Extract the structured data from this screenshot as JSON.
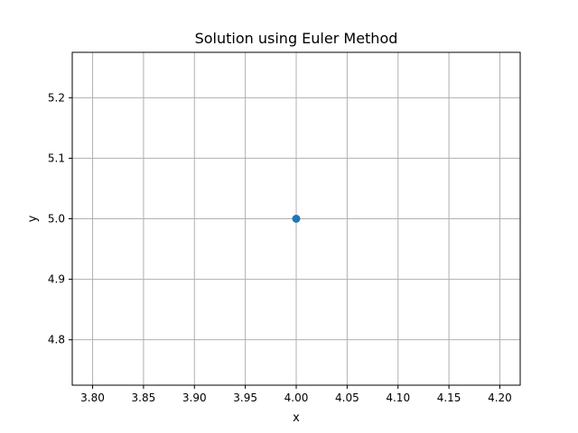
{
  "chart_data": {
    "type": "scatter",
    "title": "Solution using Euler Method",
    "xlabel": "x",
    "ylabel": "y",
    "xlim": [
      3.78,
      4.22
    ],
    "ylim": [
      4.725,
      5.275
    ],
    "xticks": [
      "3.80",
      "3.85",
      "3.90",
      "3.95",
      "4.00",
      "4.05",
      "4.10",
      "4.15",
      "4.20"
    ],
    "yticks": [
      "4.8",
      "4.9",
      "5.0",
      "5.1",
      "5.2"
    ],
    "grid": true,
    "series": [
      {
        "x": [
          4.0
        ],
        "y": [
          5.0
        ],
        "color": "#1f77b4",
        "marker": "o"
      }
    ]
  }
}
